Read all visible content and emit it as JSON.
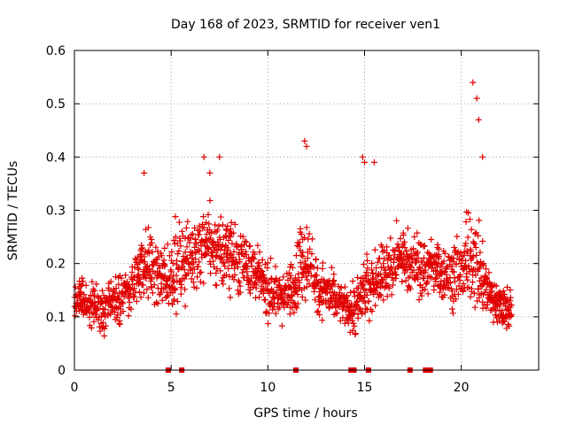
{
  "chart_data": {
    "type": "scatter",
    "title": "Day 168 of 2023, SRMTID for receiver ven1",
    "xlabel": "GPS time / hours",
    "ylabel": "SRMTID / TECUs",
    "xlim": [
      0,
      24
    ],
    "ylim": [
      0,
      0.6
    ],
    "grid": true,
    "marker": "+",
    "color": "#e00000",
    "xticks": [
      0,
      5,
      10,
      15,
      20
    ],
    "xtick_labels": [
      "0",
      "5",
      "10",
      "15",
      "20"
    ],
    "yticks": [
      0,
      0.1,
      0.2,
      0.3,
      0.4,
      0.5,
      0.6
    ],
    "ytick_labels": [
      "0",
      "0.1",
      "0.2",
      "0.3",
      "0.4",
      "0.5",
      "0.6"
    ],
    "zero_markers_x": [
      4.85,
      5.55,
      11.45,
      14.3,
      14.45,
      15.2,
      17.35,
      18.15,
      18.4
    ],
    "envelope": {
      "x": [
        0.0,
        0.5,
        1.0,
        1.5,
        2.0,
        2.5,
        3.0,
        3.5,
        4.0,
        4.5,
        5.0,
        5.5,
        6.0,
        6.5,
        7.0,
        7.5,
        8.0,
        8.5,
        9.0,
        9.5,
        10.0,
        10.5,
        11.0,
        11.5,
        12.0,
        12.5,
        13.0,
        13.5,
        14.0,
        14.5,
        15.0,
        15.5,
        16.0,
        16.5,
        17.0,
        17.5,
        18.0,
        18.5,
        19.0,
        19.5,
        20.0,
        20.5,
        21.0,
        21.5,
        22.0,
        22.5
      ],
      "mean": [
        0.13,
        0.13,
        0.12,
        0.11,
        0.13,
        0.14,
        0.16,
        0.2,
        0.19,
        0.17,
        0.18,
        0.2,
        0.22,
        0.23,
        0.24,
        0.22,
        0.22,
        0.21,
        0.2,
        0.17,
        0.15,
        0.14,
        0.14,
        0.18,
        0.22,
        0.16,
        0.15,
        0.13,
        0.12,
        0.11,
        0.15,
        0.17,
        0.18,
        0.2,
        0.21,
        0.2,
        0.19,
        0.19,
        0.18,
        0.18,
        0.19,
        0.22,
        0.18,
        0.14,
        0.12,
        0.11
      ],
      "spread": [
        0.04,
        0.04,
        0.04,
        0.05,
        0.05,
        0.05,
        0.06,
        0.07,
        0.07,
        0.06,
        0.07,
        0.08,
        0.08,
        0.08,
        0.08,
        0.07,
        0.07,
        0.07,
        0.06,
        0.05,
        0.05,
        0.05,
        0.05,
        0.07,
        0.08,
        0.06,
        0.05,
        0.04,
        0.04,
        0.05,
        0.06,
        0.06,
        0.06,
        0.06,
        0.06,
        0.06,
        0.06,
        0.06,
        0.06,
        0.06,
        0.07,
        0.09,
        0.07,
        0.05,
        0.04,
        0.04
      ],
      "step_hours": 0.02
    },
    "notable_points": {
      "x": [
        3.6,
        6.7,
        7.0,
        7.5,
        11.9,
        12.0,
        14.9,
        15.0,
        15.5,
        20.6,
        20.8,
        20.9,
        21.1
      ],
      "y": [
        0.37,
        0.4,
        0.37,
        0.4,
        0.43,
        0.42,
        0.4,
        0.39,
        0.39,
        0.54,
        0.51,
        0.47,
        0.4
      ]
    }
  }
}
